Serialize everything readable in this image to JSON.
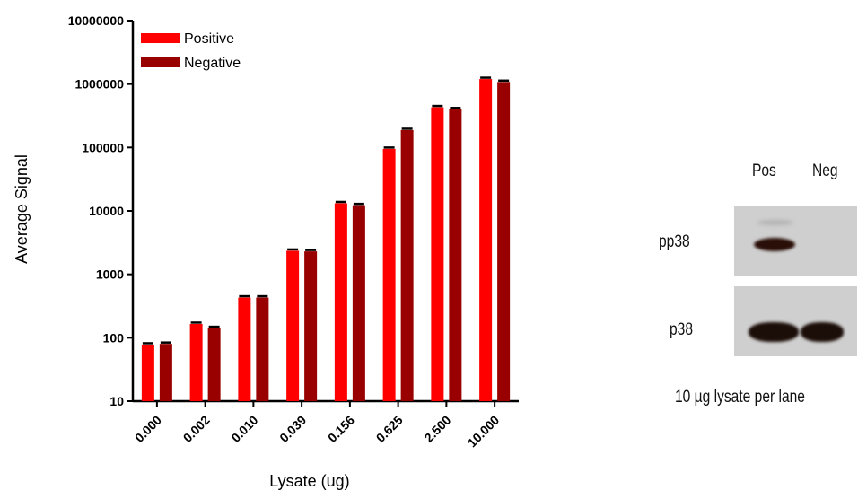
{
  "chart_data": {
    "type": "bar",
    "ylabel": "Average Signal",
    "xlabel": "Lysate (ug)",
    "yscale": "log",
    "ylim": [
      10,
      10000000
    ],
    "yticks": [
      "10",
      "100",
      "1000",
      "10000",
      "100000",
      "1000000",
      "10000000"
    ],
    "categories": [
      "0.000",
      "0.002",
      "0.010",
      "0.039",
      "0.156",
      "0.625",
      "2.500",
      "10.000"
    ],
    "series": [
      {
        "name": "Positive",
        "color": "#ff0000",
        "values": [
          78,
          165,
          430,
          2350,
          13200,
          95000,
          430000,
          1200000
        ]
      },
      {
        "name": "Negative",
        "color": "#990000",
        "values": [
          80,
          142,
          430,
          2300,
          12300,
          188000,
          400000,
          1080000
        ]
      }
    ],
    "legend_position": "top-left"
  },
  "blot": {
    "lane_labels": [
      "Pos",
      "Neg"
    ],
    "row_labels": [
      "pp38",
      "p38"
    ],
    "caption": "10 µg lysate per lane"
  }
}
